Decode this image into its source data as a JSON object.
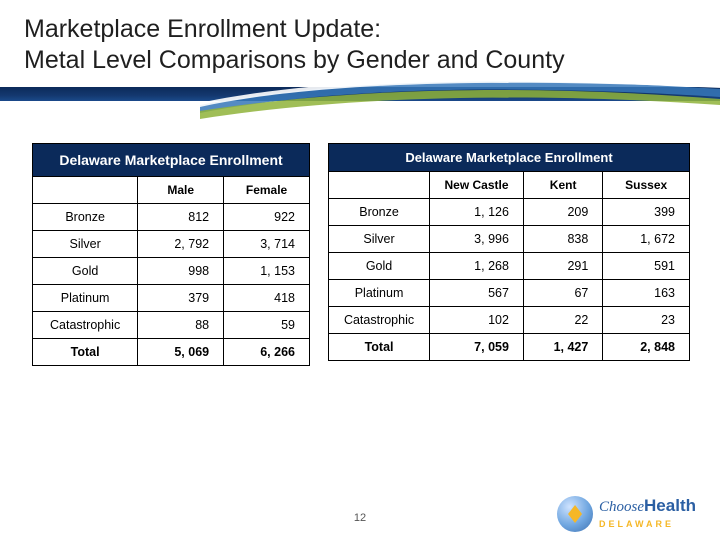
{
  "title": {
    "line1": "Marketplace Enrollment Update:",
    "line2": "Metal Level Comparisons by Gender and County"
  },
  "colors": {
    "header_bg": "#0b2a5a",
    "header_text": "#ffffff",
    "border": "#000000",
    "accent_yellow": "#f5b726",
    "logo_blue": "#2b5fa3"
  },
  "left_table": {
    "title": "Delaware Marketplace Enrollment",
    "columns": [
      "",
      "Male",
      "Female"
    ],
    "rows": [
      {
        "label": "Bronze",
        "vals": [
          "812",
          "922"
        ]
      },
      {
        "label": "Silver",
        "vals": [
          "2, 792",
          "3, 714"
        ]
      },
      {
        "label": "Gold",
        "vals": [
          "998",
          "1, 153"
        ]
      },
      {
        "label": "Platinum",
        "vals": [
          "379",
          "418"
        ]
      },
      {
        "label": "Catastrophic",
        "vals": [
          "88",
          "59"
        ]
      },
      {
        "label": "Total",
        "vals": [
          "5, 069",
          "6, 266"
        ],
        "total": true
      }
    ]
  },
  "right_table": {
    "title": "Delaware Marketplace Enrollment",
    "columns": [
      "",
      "New Castle",
      "Kent",
      "Sussex"
    ],
    "rows": [
      {
        "label": "Bronze",
        "vals": [
          "1, 126",
          "209",
          "399"
        ]
      },
      {
        "label": "Silver",
        "vals": [
          "3, 996",
          "838",
          "1, 672"
        ]
      },
      {
        "label": "Gold",
        "vals": [
          "1, 268",
          "291",
          "591"
        ]
      },
      {
        "label": "Platinum",
        "vals": [
          "567",
          "67",
          "163"
        ]
      },
      {
        "label": "Catastrophic",
        "vals": [
          "102",
          "22",
          "23"
        ]
      },
      {
        "label": "Total",
        "vals": [
          "7, 059",
          "1, 427",
          "2, 848"
        ],
        "total": true
      }
    ]
  },
  "page_number": "12",
  "logo": {
    "choose": "Choose",
    "health": "Health",
    "state": "DELAWARE"
  }
}
